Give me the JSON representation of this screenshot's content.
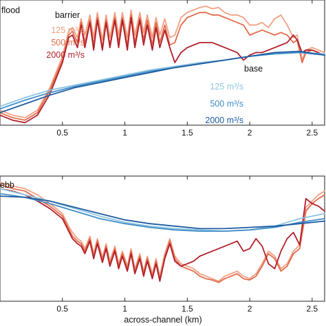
{
  "colors": {
    "barrier_125": "#f0a082",
    "barrier_500": "#e26a4a",
    "barrier_2000": "#b01e2a",
    "base_125": "#8cc4e2",
    "base_500": "#3f8dc6",
    "base_2000": "#1d5aa0"
  },
  "chart_data": [
    {
      "type": "line",
      "panel_label": "flood",
      "xlabel": "",
      "xlim": [
        0,
        2.6
      ],
      "xticks": [
        "0.5",
        "1",
        "1.5",
        "2",
        "2.5"
      ],
      "legend_groups": [
        {
          "title": "barrier",
          "entries": [
            "125 m³/s",
            "500 m³/s",
            "2000 m³/s"
          ]
        },
        {
          "title": "base",
          "entries": [
            "125 m³/s",
            "500 m³/s",
            "2000 m³/s"
          ]
        }
      ],
      "series": [
        {
          "name": "barrier 125 m³/s",
          "color_key": "barrier_125",
          "x": [
            0,
            0.1,
            0.2,
            0.3,
            0.4,
            0.5,
            0.55,
            0.58,
            0.62,
            0.65,
            0.68,
            0.72,
            0.75,
            0.78,
            0.82,
            0.85,
            0.88,
            0.92,
            0.95,
            0.98,
            1.02,
            1.05,
            1.08,
            1.12,
            1.15,
            1.18,
            1.22,
            1.25,
            1.28,
            1.32,
            1.36,
            1.4,
            1.45,
            1.5,
            1.55,
            1.6,
            1.65,
            1.7,
            1.75,
            1.8,
            1.85,
            1.9,
            1.95,
            2.0,
            2.05,
            2.1,
            2.15,
            2.2,
            2.25,
            2.3,
            2.35,
            2.38,
            2.42,
            2.45,
            2.5,
            2.55,
            2.6
          ],
          "y": [
            0.12,
            0.08,
            0.06,
            0.12,
            0.3,
            0.55,
            0.75,
            0.78,
            0.7,
            0.85,
            0.72,
            0.88,
            0.7,
            0.9,
            0.68,
            0.88,
            0.7,
            0.9,
            0.72,
            0.9,
            0.7,
            0.92,
            0.72,
            0.9,
            0.74,
            0.88,
            0.7,
            0.86,
            0.72,
            0.85,
            0.7,
            0.72,
            0.86,
            0.9,
            0.92,
            0.94,
            0.95,
            0.93,
            0.94,
            0.9,
            0.88,
            0.88,
            0.86,
            0.8,
            0.8,
            0.82,
            0.78,
            0.85,
            0.88,
            0.8,
            0.7,
            0.72,
            0.52,
            0.6,
            0.62,
            0.6,
            0.58
          ]
        },
        {
          "name": "barrier 500 m³/s",
          "color_key": "barrier_500",
          "x": [
            0,
            0.1,
            0.2,
            0.3,
            0.4,
            0.5,
            0.55,
            0.58,
            0.62,
            0.65,
            0.68,
            0.72,
            0.75,
            0.78,
            0.82,
            0.85,
            0.88,
            0.92,
            0.95,
            0.98,
            1.02,
            1.05,
            1.08,
            1.12,
            1.15,
            1.18,
            1.22,
            1.25,
            1.28,
            1.32,
            1.36,
            1.4,
            1.45,
            1.5,
            1.55,
            1.6,
            1.65,
            1.7,
            1.75,
            1.8,
            1.85,
            1.9,
            1.95,
            2.0,
            2.05,
            2.1,
            2.15,
            2.2,
            2.25,
            2.3,
            2.35,
            2.38,
            2.42,
            2.45,
            2.5,
            2.55,
            2.6
          ],
          "y": [
            0.1,
            0.06,
            0.04,
            0.1,
            0.28,
            0.52,
            0.72,
            0.75,
            0.66,
            0.82,
            0.66,
            0.84,
            0.64,
            0.86,
            0.62,
            0.84,
            0.64,
            0.86,
            0.66,
            0.86,
            0.64,
            0.88,
            0.66,
            0.86,
            0.68,
            0.84,
            0.64,
            0.82,
            0.66,
            0.8,
            0.64,
            0.66,
            0.8,
            0.86,
            0.88,
            0.9,
            0.9,
            0.88,
            0.88,
            0.86,
            0.84,
            0.82,
            0.8,
            0.72,
            0.74,
            0.76,
            0.74,
            0.72,
            0.74,
            0.72,
            0.66,
            0.68,
            0.5,
            0.58,
            0.6,
            0.58,
            0.56
          ]
        },
        {
          "name": "barrier 2000 m³/s",
          "color_key": "barrier_2000",
          "x": [
            0,
            0.1,
            0.2,
            0.3,
            0.4,
            0.5,
            0.55,
            0.58,
            0.62,
            0.65,
            0.68,
            0.72,
            0.75,
            0.78,
            0.82,
            0.85,
            0.88,
            0.92,
            0.95,
            0.98,
            1.02,
            1.05,
            1.08,
            1.12,
            1.15,
            1.18,
            1.22,
            1.25,
            1.28,
            1.32,
            1.36,
            1.4,
            1.45,
            1.5,
            1.55,
            1.6,
            1.65,
            1.7,
            1.75,
            1.8,
            1.85,
            1.9,
            1.95,
            2.0,
            2.05,
            2.1,
            2.15,
            2.2,
            2.25,
            2.3,
            2.35,
            2.38,
            2.42,
            2.45,
            2.5,
            2.55,
            2.6
          ],
          "y": [
            0.08,
            0.04,
            0.02,
            0.08,
            0.25,
            0.5,
            0.7,
            0.72,
            0.62,
            0.8,
            0.62,
            0.82,
            0.6,
            0.84,
            0.6,
            0.82,
            0.62,
            0.84,
            0.62,
            0.84,
            0.6,
            0.86,
            0.62,
            0.84,
            0.64,
            0.8,
            0.6,
            0.78,
            0.62,
            0.76,
            0.62,
            0.5,
            0.58,
            0.62,
            0.64,
            0.66,
            0.66,
            0.66,
            0.64,
            0.62,
            0.6,
            0.58,
            0.52,
            0.56,
            0.58,
            0.58,
            0.6,
            0.62,
            0.64,
            0.66,
            0.72,
            0.68,
            0.58,
            0.6,
            0.6,
            0.58,
            0.56
          ]
        },
        {
          "name": "base 125 m³/s",
          "color_key": "base_125",
          "x": [
            0,
            0.2,
            0.4,
            0.6,
            0.8,
            1.0,
            1.2,
            1.4,
            1.6,
            1.8,
            2.0,
            2.2,
            2.4,
            2.6
          ],
          "y": [
            0.15,
            0.22,
            0.28,
            0.32,
            0.36,
            0.4,
            0.44,
            0.47,
            0.5,
            0.52,
            0.55,
            0.57,
            0.58,
            0.57
          ]
        },
        {
          "name": "base 500 m³/s",
          "color_key": "base_500",
          "x": [
            0,
            0.2,
            0.4,
            0.6,
            0.8,
            1.0,
            1.2,
            1.4,
            1.6,
            1.8,
            2.0,
            2.2,
            2.4,
            2.6
          ],
          "y": [
            0.13,
            0.2,
            0.26,
            0.31,
            0.35,
            0.39,
            0.43,
            0.46,
            0.49,
            0.52,
            0.55,
            0.57,
            0.58,
            0.56
          ]
        },
        {
          "name": "base 2000 m³/s",
          "color_key": "base_2000",
          "x": [
            0,
            0.2,
            0.4,
            0.6,
            0.8,
            1.0,
            1.2,
            1.4,
            1.6,
            1.8,
            2.0,
            2.2,
            2.4,
            2.6
          ],
          "y": [
            0.1,
            0.17,
            0.24,
            0.3,
            0.34,
            0.38,
            0.42,
            0.46,
            0.49,
            0.52,
            0.55,
            0.58,
            0.59,
            0.56
          ]
        }
      ]
    },
    {
      "type": "line",
      "panel_label": "ebb",
      "xlabel": "across-channel (km)",
      "xlim": [
        0,
        2.6
      ],
      "xticks": [
        "0.5",
        "1",
        "1.5",
        "2",
        "2.5"
      ],
      "series": [
        {
          "name": "barrier 125 m³/s",
          "color_key": "barrier_125",
          "x": [
            0,
            0.1,
            0.2,
            0.3,
            0.4,
            0.5,
            0.55,
            0.58,
            0.62,
            0.65,
            0.68,
            0.72,
            0.75,
            0.78,
            0.82,
            0.85,
            0.88,
            0.92,
            0.95,
            0.98,
            1.02,
            1.05,
            1.08,
            1.12,
            1.15,
            1.18,
            1.22,
            1.25,
            1.28,
            1.32,
            1.36,
            1.4,
            1.45,
            1.5,
            1.55,
            1.6,
            1.65,
            1.7,
            1.75,
            1.8,
            1.85,
            1.9,
            1.95,
            2.0,
            2.05,
            2.1,
            2.15,
            2.2,
            2.25,
            2.3,
            2.35,
            2.4,
            2.45,
            2.5,
            2.55,
            2.6
          ],
          "y": [
            0.95,
            0.92,
            0.9,
            0.85,
            0.78,
            0.7,
            0.6,
            0.55,
            0.5,
            0.48,
            0.42,
            0.52,
            0.38,
            0.5,
            0.35,
            0.46,
            0.32,
            0.44,
            0.3,
            0.4,
            0.28,
            0.42,
            0.26,
            0.38,
            0.24,
            0.36,
            0.22,
            0.34,
            0.2,
            0.38,
            0.5,
            0.36,
            0.3,
            0.28,
            0.26,
            0.22,
            0.2,
            0.18,
            0.16,
            0.2,
            0.22,
            0.24,
            0.2,
            0.18,
            0.22,
            0.3,
            0.4,
            0.36,
            0.26,
            0.3,
            0.4,
            0.45,
            0.75,
            0.8,
            0.85,
            0.88
          ]
        },
        {
          "name": "barrier 500 m³/s",
          "color_key": "barrier_500",
          "x": [
            0,
            0.1,
            0.2,
            0.3,
            0.4,
            0.5,
            0.55,
            0.58,
            0.62,
            0.65,
            0.68,
            0.72,
            0.75,
            0.78,
            0.82,
            0.85,
            0.88,
            0.92,
            0.95,
            0.98,
            1.02,
            1.05,
            1.08,
            1.12,
            1.15,
            1.18,
            1.22,
            1.25,
            1.28,
            1.32,
            1.36,
            1.4,
            1.45,
            1.5,
            1.55,
            1.6,
            1.65,
            1.7,
            1.75,
            1.8,
            1.85,
            1.9,
            1.95,
            2.0,
            2.05,
            2.1,
            2.15,
            2.2,
            2.25,
            2.3,
            2.35,
            2.4,
            2.45,
            2.5,
            2.55,
            2.6
          ],
          "y": [
            0.93,
            0.9,
            0.88,
            0.82,
            0.76,
            0.68,
            0.58,
            0.52,
            0.48,
            0.46,
            0.4,
            0.5,
            0.36,
            0.48,
            0.33,
            0.44,
            0.3,
            0.42,
            0.28,
            0.38,
            0.26,
            0.4,
            0.24,
            0.36,
            0.22,
            0.34,
            0.2,
            0.32,
            0.18,
            0.36,
            0.48,
            0.34,
            0.28,
            0.26,
            0.24,
            0.2,
            0.18,
            0.17,
            0.15,
            0.18,
            0.2,
            0.22,
            0.18,
            0.17,
            0.2,
            0.28,
            0.38,
            0.34,
            0.24,
            0.28,
            0.38,
            0.42,
            0.72,
            0.78,
            0.82,
            0.85
          ]
        },
        {
          "name": "barrier 2000 m³/s",
          "color_key": "barrier_2000",
          "x": [
            0,
            0.1,
            0.2,
            0.3,
            0.4,
            0.5,
            0.55,
            0.58,
            0.62,
            0.65,
            0.68,
            0.72,
            0.75,
            0.78,
            0.82,
            0.85,
            0.88,
            0.92,
            0.95,
            0.98,
            1.02,
            1.05,
            1.08,
            1.12,
            1.15,
            1.18,
            1.22,
            1.25,
            1.28,
            1.32,
            1.36,
            1.4,
            1.45,
            1.5,
            1.55,
            1.6,
            1.65,
            1.7,
            1.75,
            1.8,
            1.85,
            1.9,
            1.95,
            2.0,
            2.05,
            2.1,
            2.15,
            2.2,
            2.25,
            2.3,
            2.35,
            2.4,
            2.45,
            2.5,
            2.55,
            2.6
          ],
          "y": [
            0.9,
            0.88,
            0.85,
            0.8,
            0.74,
            0.66,
            0.56,
            0.5,
            0.46,
            0.44,
            0.38,
            0.48,
            0.34,
            0.46,
            0.31,
            0.42,
            0.28,
            0.4,
            0.26,
            0.36,
            0.24,
            0.38,
            0.22,
            0.34,
            0.2,
            0.32,
            0.18,
            0.3,
            0.16,
            0.34,
            0.46,
            0.32,
            0.28,
            0.3,
            0.32,
            0.36,
            0.38,
            0.4,
            0.42,
            0.44,
            0.46,
            0.48,
            0.4,
            0.42,
            0.5,
            0.44,
            0.3,
            0.26,
            0.4,
            0.5,
            0.55,
            0.45,
            0.82,
            0.78,
            0.76,
            0.72
          ]
        },
        {
          "name": "base 125 m³/s",
          "color_key": "base_125",
          "x": [
            0,
            0.2,
            0.4,
            0.6,
            0.8,
            1.0,
            1.2,
            1.4,
            1.6,
            1.8,
            2.0,
            2.2,
            2.4,
            2.6
          ],
          "y": [
            0.9,
            0.85,
            0.8,
            0.74,
            0.68,
            0.63,
            0.6,
            0.58,
            0.57,
            0.56,
            0.57,
            0.6,
            0.66,
            0.7
          ]
        },
        {
          "name": "base 500 m³/s",
          "color_key": "base_500",
          "x": [
            0,
            0.2,
            0.4,
            0.6,
            0.8,
            1.0,
            1.2,
            1.4,
            1.6,
            1.8,
            2.0,
            2.2,
            2.4,
            2.6
          ],
          "y": [
            0.86,
            0.83,
            0.78,
            0.72,
            0.66,
            0.62,
            0.59,
            0.57,
            0.56,
            0.56,
            0.57,
            0.59,
            0.63,
            0.66
          ]
        },
        {
          "name": "base 2000 m³/s",
          "color_key": "base_2000",
          "x": [
            0,
            0.2,
            0.4,
            0.6,
            0.8,
            1.0,
            1.2,
            1.4,
            1.6,
            1.8,
            2.0,
            2.2,
            2.4,
            2.6
          ],
          "y": [
            0.84,
            0.83,
            0.8,
            0.75,
            0.7,
            0.65,
            0.62,
            0.6,
            0.58,
            0.58,
            0.59,
            0.6,
            0.62,
            0.64
          ]
        }
      ]
    }
  ]
}
